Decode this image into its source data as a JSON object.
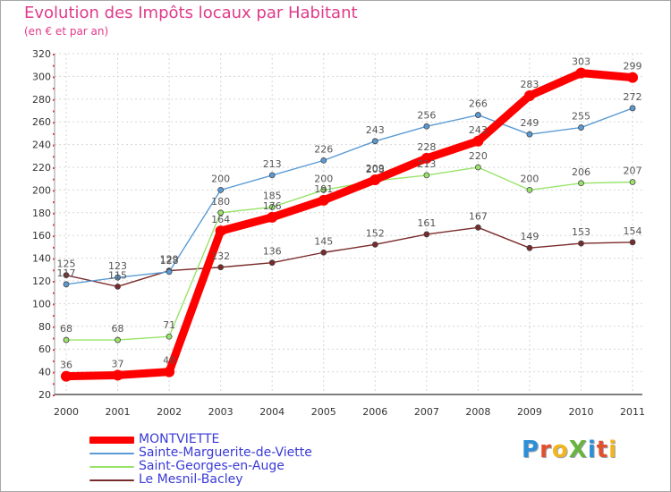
{
  "title": "Evolution des Impôts locaux par Habitant",
  "subtitle": "(en € et par an)",
  "logo": {
    "text": "ProXiti",
    "letters": [
      {
        "ch": "P",
        "color": "#2d8fd6"
      },
      {
        "ch": "r",
        "color": "#e2502b"
      },
      {
        "ch": "o",
        "color": "#f2b51f"
      },
      {
        "ch": "X",
        "color": "#6ab43e"
      },
      {
        "ch": "i",
        "color": "#2d8fd6"
      },
      {
        "ch": "t",
        "color": "#e2502b"
      },
      {
        "ch": "i",
        "color": "#f2b51f"
      }
    ]
  },
  "chart_data": {
    "type": "line",
    "title": "Evolution des Impôts locaux par Habitant",
    "subtitle": "(en € et par an)",
    "xlabel": "",
    "ylabel": "",
    "x": [
      "2000",
      "2001",
      "2002",
      "2003",
      "2004",
      "2005",
      "2006",
      "2007",
      "2008",
      "2009",
      "2010",
      "2011"
    ],
    "ylim": [
      20,
      320
    ],
    "yticks": [
      20,
      40,
      60,
      80,
      100,
      120,
      140,
      160,
      180,
      200,
      220,
      240,
      260,
      280,
      300,
      320
    ],
    "grid": true,
    "legend_position": "bottom-left",
    "series": [
      {
        "name": "MONTVIETTE",
        "color": "#ff0000",
        "label_color": "#555555",
        "values": [
          36,
          37,
          40,
          164,
          176,
          191,
          209,
          228,
          243,
          283,
          303,
          299
        ]
      },
      {
        "name": "Sainte-Marguerite-de-Viette",
        "color": "#5b9bd5",
        "label_color": "#555555",
        "values": [
          117,
          123,
          128,
          200,
          213,
          226,
          243,
          256,
          266,
          249,
          255,
          272
        ]
      },
      {
        "name": "Saint-Georges-en-Auge",
        "color": "#99e36a",
        "label_color": "#555555",
        "values": [
          68,
          68,
          71,
          180,
          185,
          200,
          208,
          213,
          220,
          200,
          206,
          207
        ]
      },
      {
        "name": "Le Mesnil-Bacley",
        "color": "#7a2a2a",
        "label_color": "#555555",
        "values": [
          125,
          115,
          129,
          132,
          136,
          145,
          152,
          161,
          167,
          149,
          153,
          154
        ]
      }
    ],
    "legend_text_color": "#3a3ad8"
  }
}
